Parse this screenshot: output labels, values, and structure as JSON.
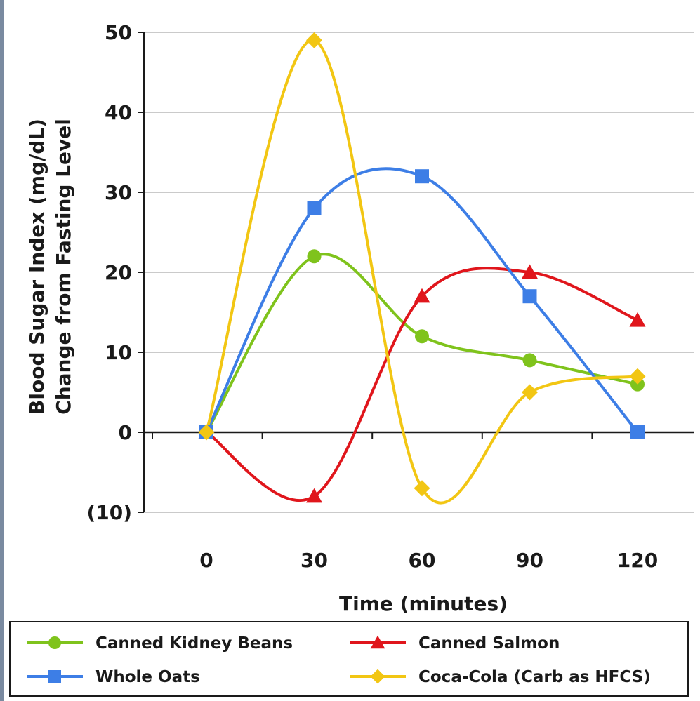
{
  "chart_data": {
    "type": "line",
    "x": [
      0,
      30,
      60,
      90,
      120
    ],
    "x_tick_labels": [
      "0",
      "30",
      "60",
      "90",
      "120"
    ],
    "xlabel": "Time (minutes)",
    "ylabel_lines": [
      "Blood Sugar Index (mg/dL)",
      "Change from Fasting Level"
    ],
    "ylim": [
      -10,
      50
    ],
    "y_ticks": [
      {
        "value": 50,
        "label": "50",
        "color": "#1a1a1a"
      },
      {
        "value": 40,
        "label": "40",
        "color": "#1a1a1a"
      },
      {
        "value": 30,
        "label": "30",
        "color": "#1a1a1a"
      },
      {
        "value": 20,
        "label": "20",
        "color": "#1a1a1a"
      },
      {
        "value": 10,
        "label": "10",
        "color": "#1a1a1a"
      },
      {
        "value": 0,
        "label": "0",
        "color": "#1a1a1a"
      },
      {
        "value": -10,
        "label": "(10)",
        "color": "#c0161c"
      }
    ],
    "grid": true,
    "legend_position": "bottom",
    "series": [
      {
        "name": "Canned Kidney Beans",
        "marker": "circle",
        "color": "#7fc31c",
        "values": [
          0,
          22,
          12,
          9,
          6
        ]
      },
      {
        "name": "Canned Salmon",
        "marker": "triangle",
        "color": "#e0161c",
        "values": [
          0,
          -8,
          17,
          20,
          14
        ]
      },
      {
        "name": "Whole Oats",
        "marker": "square",
        "color": "#3d7ee6",
        "values": [
          0,
          28,
          32,
          17,
          0
        ]
      },
      {
        "name": "Coca-Cola (Carb as HFCS)",
        "marker": "diamond",
        "color": "#f2c613",
        "values": [
          0,
          49,
          -7,
          5,
          7
        ]
      }
    ]
  }
}
